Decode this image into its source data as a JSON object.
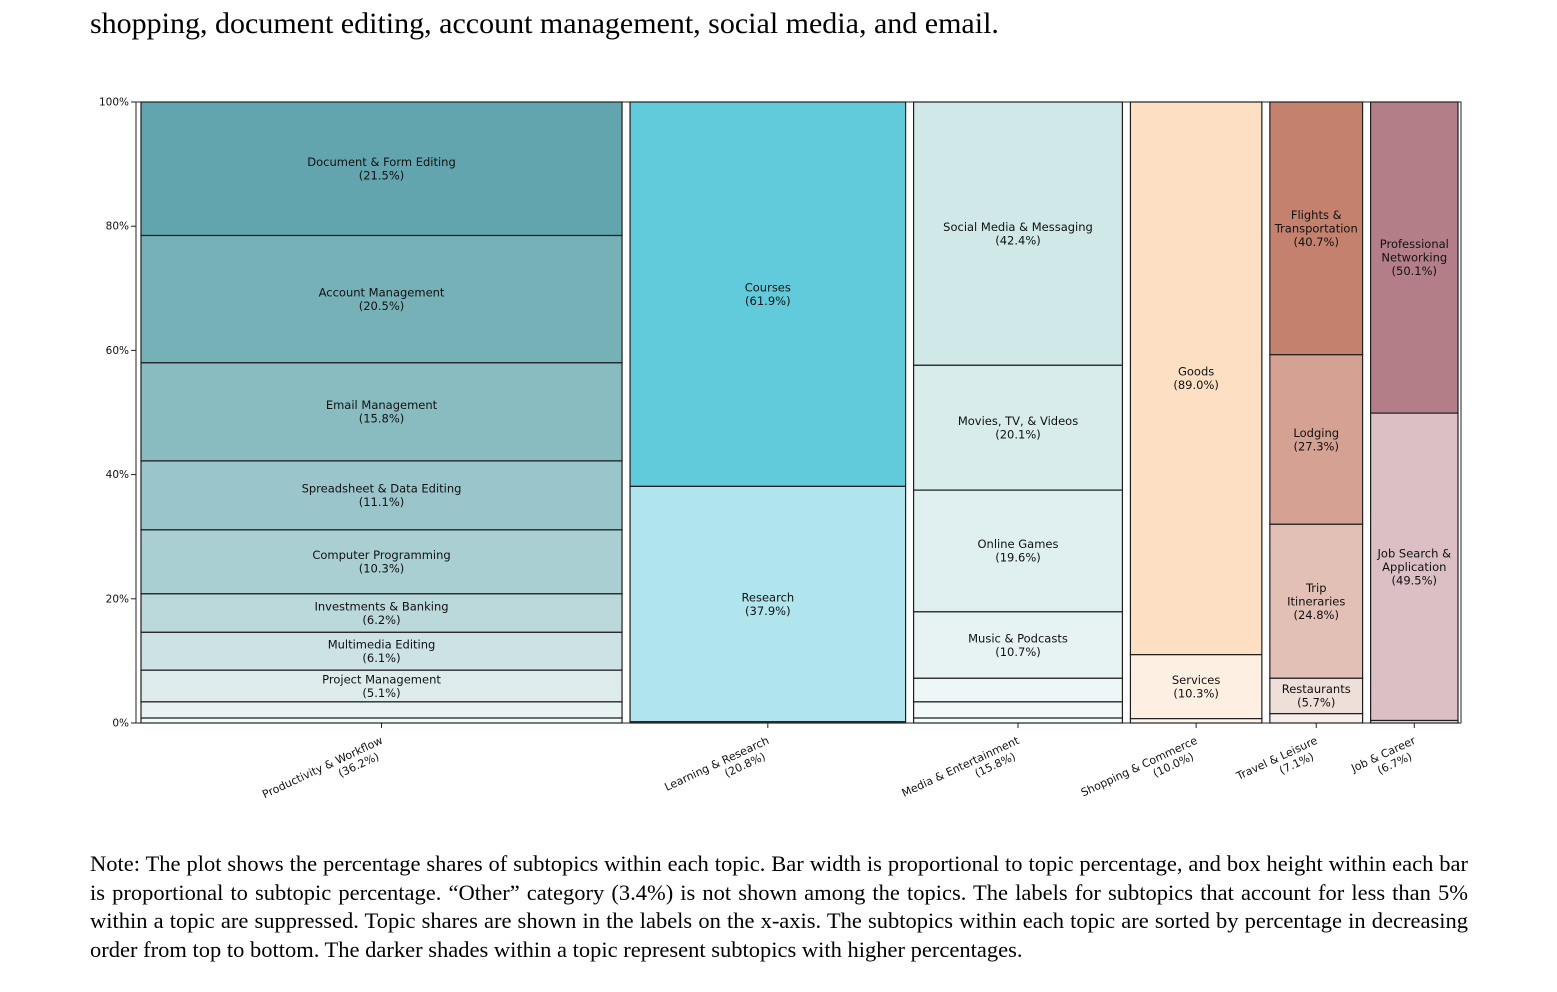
{
  "intro_text": "shopping, document editing, account management, social media, and email.",
  "note_text": "Note: The plot shows the percentage shares of subtopics within each topic. Bar width is proportional to topic percentage, and box height within each bar is proportional to subtopic percentage. “Other” category (3.4%) is not shown among the topics. The labels for subtopics that account for less than 5% within a topic are suppressed. Topic shares are shown in the labels on the x-axis. The subtopics within each topic are sorted by percentage in decreasing order from top to bottom. The darker shades within a topic represent subtopics with higher percentages.",
  "chart_data": {
    "type": "mosaic (marimekko stacked bar)",
    "y_axis": {
      "range": [
        0,
        100
      ],
      "unit": "%",
      "ticks": [
        "0%",
        "20%",
        "40%",
        "60%",
        "80%",
        "100%"
      ]
    },
    "topics": [
      {
        "name": "Productivity & Workflow",
        "share_label": "(36.2%)",
        "share": 36.2,
        "color": "#5fa3ad",
        "subtopics": [
          {
            "name": "Document & Form Editing",
            "pct": 21.5,
            "pct_label": "(21.5%)",
            "color": "#62a5ae"
          },
          {
            "name": "Account Management",
            "pct": 20.5,
            "pct_label": "(20.5%)",
            "color": "#76b1b8"
          },
          {
            "name": "Email Management",
            "pct": 15.8,
            "pct_label": "(15.8%)",
            "color": "#89bcc1"
          },
          {
            "name": "Spreadsheet & Data Editing",
            "pct": 11.1,
            "pct_label": "(11.1%)",
            "color": "#9ac5ca"
          },
          {
            "name": "Computer Programming",
            "pct": 10.3,
            "pct_label": "(10.3%)",
            "color": "#aacfd3"
          },
          {
            "name": "Investments & Banking",
            "pct": 6.2,
            "pct_label": "(6.2%)",
            "color": "#bbd8db"
          },
          {
            "name": "Multimedia Editing",
            "pct": 6.1,
            "pct_label": "(6.1%)",
            "color": "#cde2e5"
          },
          {
            "name": "Project Management",
            "pct": 5.1,
            "pct_label": "(5.1%)",
            "color": "#ddebed"
          },
          {
            "name": "",
            "pct": 2.6,
            "pct_label": "",
            "color": "#e9f2f3"
          },
          {
            "name": "",
            "pct": 0.8,
            "pct_label": "",
            "color": "#f3f8f9"
          }
        ]
      },
      {
        "name": "Learning & Research",
        "share_label": "(20.8%)",
        "share": 20.8,
        "color": "#62cbdb",
        "subtopics": [
          {
            "name": "Courses",
            "pct": 61.9,
            "pct_label": "(61.9%)",
            "color": "#62cbdb"
          },
          {
            "name": "Research",
            "pct": 37.9,
            "pct_label": "(37.9%)",
            "color": "#b1e5ed"
          },
          {
            "name": "",
            "pct": 0.2,
            "pct_label": "",
            "color": "#e3f6f9"
          }
        ]
      },
      {
        "name": "Media & Entertainment",
        "share_label": "(15.8%)",
        "share": 15.8,
        "color": "#d0e8e8",
        "subtopics": [
          {
            "name": "Social Media & Messaging",
            "pct": 42.4,
            "pct_label": "(42.4%)",
            "color": "#d0e8e8"
          },
          {
            "name": "Movies, TV, & Videos",
            "pct": 20.1,
            "pct_label": "(20.1%)",
            "color": "#d8ecec"
          },
          {
            "name": "Online Games",
            "pct": 19.6,
            "pct_label": "(19.6%)",
            "color": "#e0f0f0"
          },
          {
            "name": "Music & Podcasts",
            "pct": 10.7,
            "pct_label": "(10.7%)",
            "color": "#e7f3f3"
          },
          {
            "name": "",
            "pct": 3.8,
            "pct_label": "",
            "color": "#eef7f7"
          },
          {
            "name": "",
            "pct": 2.6,
            "pct_label": "",
            "color": "#f2f9f9"
          },
          {
            "name": "",
            "pct": 0.8,
            "pct_label": "",
            "color": "#f6fbfb"
          }
        ]
      },
      {
        "name": "Shopping & Commerce",
        "share_label": "(10.0%)",
        "share": 10.0,
        "color": "#fddfc4",
        "subtopics": [
          {
            "name": "Goods",
            "pct": 89.0,
            "pct_label": "(89.0%)",
            "color": "#fddfc4"
          },
          {
            "name": "Services",
            "pct": 10.3,
            "pct_label": "(10.3%)",
            "color": "#feefe3"
          },
          {
            "name": "",
            "pct": 0.7,
            "pct_label": "",
            "color": "#fff6ef"
          }
        ]
      },
      {
        "name": "Travel & Leisure",
        "share_label": "(7.1%)",
        "share": 7.1,
        "color": "#c4826e",
        "subtopics": [
          {
            "name": "Flights & Transportation",
            "pct": 40.7,
            "pct_label": "(40.7%)",
            "color": "#c4826e",
            "lines": [
              "Flights &",
              "Transportation"
            ]
          },
          {
            "name": "Lodging",
            "pct": 27.3,
            "pct_label": "(27.3%)",
            "color": "#d4a193"
          },
          {
            "name": "Trip Itineraries",
            "pct": 24.8,
            "pct_label": "(24.8%)",
            "color": "#e2c0b6",
            "lines": [
              "Trip",
              "Itineraries"
            ]
          },
          {
            "name": "Restaurants",
            "pct": 5.7,
            "pct_label": "(5.7%)",
            "color": "#efdfd9"
          },
          {
            "name": "",
            "pct": 1.5,
            "pct_label": "",
            "color": "#f8efec"
          }
        ]
      },
      {
        "name": "Job & Career",
        "share_label": "(6.7%)",
        "share": 6.7,
        "color": "#b47e89",
        "subtopics": [
          {
            "name": "Professional Networking",
            "pct": 50.1,
            "pct_label": "(50.1%)",
            "color": "#b47e89",
            "lines": [
              "Professional",
              "Networking"
            ]
          },
          {
            "name": "Job Search & Application",
            "pct": 49.5,
            "pct_label": "(49.5%)",
            "color": "#dbbfc5",
            "lines": [
              "Job Search &",
              "Application"
            ]
          },
          {
            "name": "",
            "pct": 0.4,
            "pct_label": "",
            "color": "#efe2e5"
          }
        ]
      }
    ]
  }
}
